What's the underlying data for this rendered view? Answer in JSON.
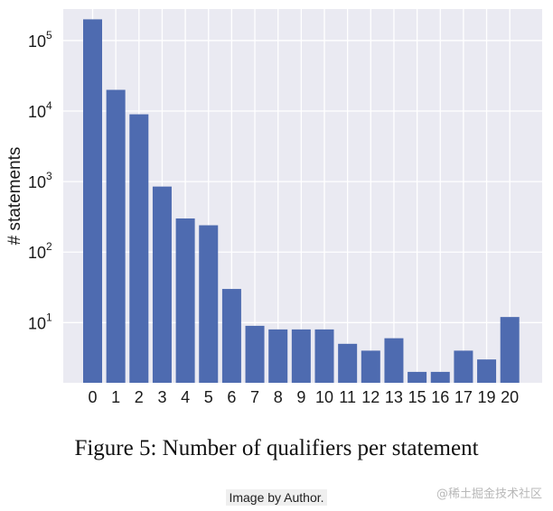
{
  "chart_data": {
    "type": "bar",
    "categories": [
      "0",
      "1",
      "2",
      "3",
      "4",
      "5",
      "6",
      "7",
      "8",
      "9",
      "10",
      "11",
      "12",
      "13",
      "15",
      "16",
      "17",
      "19",
      "20"
    ],
    "values": [
      200000,
      20000,
      9000,
      850,
      300,
      240,
      30,
      9,
      8,
      8,
      8,
      5,
      4,
      6,
      2,
      2,
      4,
      3,
      12
    ],
    "ylabel": "# statements",
    "yscale": "log",
    "yticks": [
      {
        "value": 10,
        "base": "10",
        "exp": "1"
      },
      {
        "value": 100,
        "base": "10",
        "exp": "2"
      },
      {
        "value": 1000,
        "base": "10",
        "exp": "3"
      },
      {
        "value": 10000,
        "base": "10",
        "exp": "4"
      },
      {
        "value": 100000,
        "base": "10",
        "exp": "5"
      }
    ],
    "ylim": [
      1.4,
      280000
    ],
    "bar_color": "#4e6bb0",
    "plot_background": "#eaeaf2",
    "grid": true
  },
  "caption": "Figure 5: Number of qualifiers per statement",
  "credit": "Image by Author.",
  "watermark": "@稀土掘金技术社区"
}
